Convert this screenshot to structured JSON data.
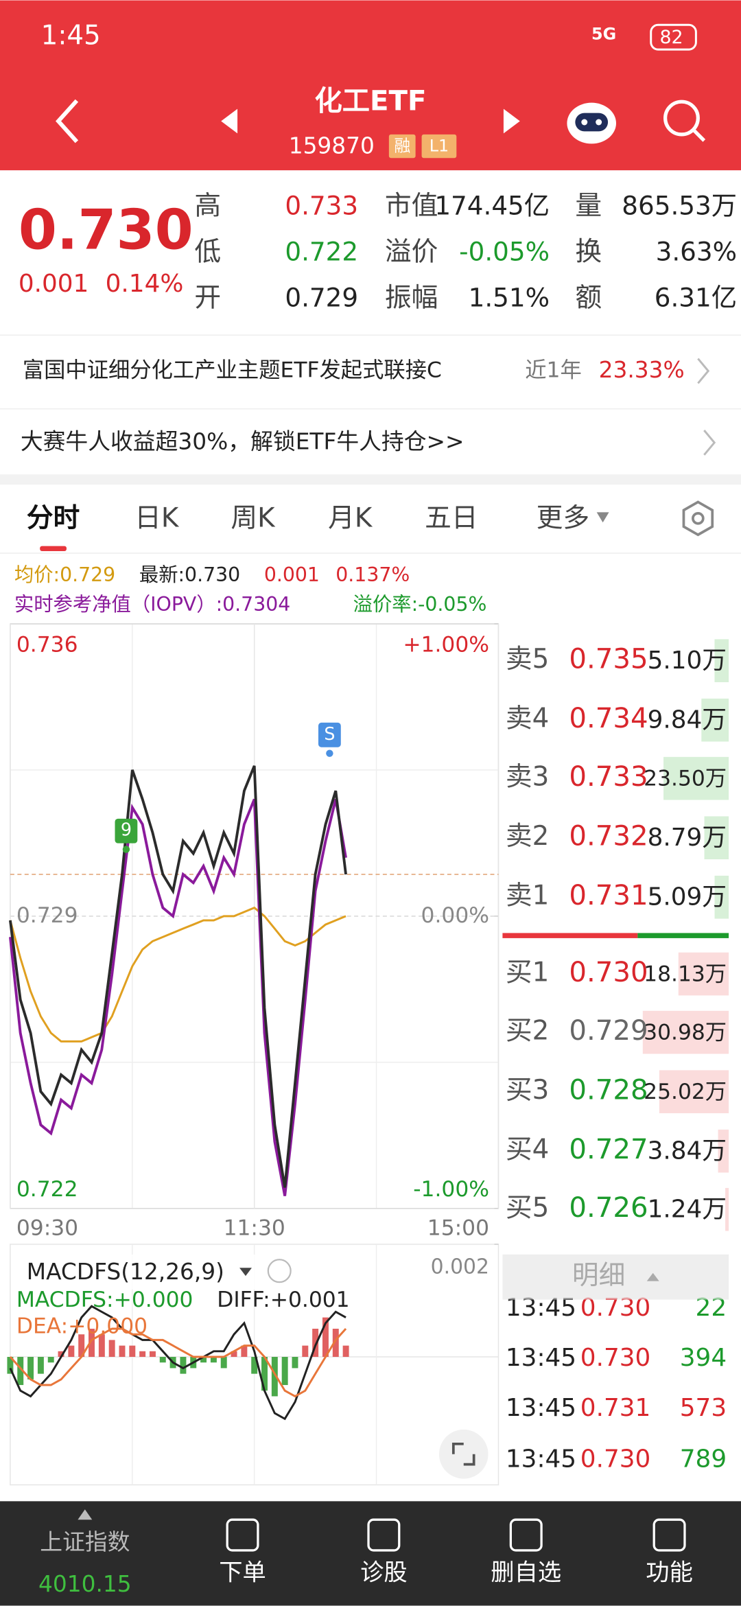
{
  "status_bar": {
    "time": "1:45",
    "network": "5G",
    "battery": "82"
  },
  "header": {
    "title": "化工ETF",
    "code": "159870",
    "badges": [
      "融",
      "L1"
    ]
  },
  "quote": {
    "price": "0.730",
    "change": "0.001",
    "change_pct": "0.14%",
    "color": "#d9262c",
    "stats": [
      {
        "label": "高",
        "value": "0.733",
        "color": "#d9262c"
      },
      {
        "label": "低",
        "value": "0.722",
        "color": "#1c9a2c"
      },
      {
        "label": "开",
        "value": "0.729",
        "color": "#222222"
      },
      {
        "label": "市值",
        "value": "174.45亿",
        "color": "#222222"
      },
      {
        "label": "溢价",
        "value": "-0.05%",
        "color": "#1c9a2c"
      },
      {
        "label": "振幅",
        "value": "1.51%",
        "color": "#222222"
      },
      {
        "label": "量",
        "value": "865.53万",
        "color": "#222222"
      },
      {
        "label": "换",
        "value": "3.63%",
        "color": "#222222"
      },
      {
        "label": "额",
        "value": "6.31亿",
        "color": "#222222"
      }
    ]
  },
  "links": {
    "fund": {
      "name": "富国中证细分化工产业主题ETF发起式联接C",
      "period": "近1年",
      "return": "23.33%"
    },
    "promo": "大赛牛人收益超30%，解锁ETF牛人持仓>>"
  },
  "tabs": {
    "items": [
      "分时",
      "日K",
      "周K",
      "月K",
      "五日",
      "更多"
    ],
    "active": 0
  },
  "info": {
    "avg": "均价:0.729",
    "latest": "最新:0.730",
    "change": "0.001",
    "change_pct": "0.137%",
    "iopv": "实时参考净值（IOPV）:0.7304",
    "premium": "溢价率:-0.05%"
  },
  "intraday_chart": {
    "type": "line",
    "xlim": [
      0,
      240
    ],
    "xticks": [
      {
        "value": 0,
        "label": "09:30"
      },
      {
        "value": 120,
        "label": "11:30"
      },
      {
        "value": 240,
        "label": "15:00"
      }
    ],
    "ylim": [
      0.722,
      0.736
    ],
    "yticks": [
      0.722,
      0.729,
      0.736
    ],
    "ytick_colors": [
      "#1c9a2c",
      "#888888",
      "#d9262c"
    ],
    "y2lim": [
      -1,
      1
    ],
    "y2ticks": [
      {
        "value": -1,
        "label": "-1.00%"
      },
      {
        "value": 0,
        "label": "0.00%"
      },
      {
        "value": 1,
        "label": "+1.00%"
      }
    ],
    "x": [
      0,
      5,
      10,
      15,
      20,
      25,
      30,
      35,
      40,
      45,
      50,
      55,
      60,
      65,
      70,
      75,
      80,
      85,
      90,
      95,
      100,
      105,
      110,
      115,
      120,
      125,
      130,
      135,
      140,
      145,
      150,
      155,
      160,
      165
    ],
    "series": [
      {
        "color": "#e0a020",
        "values": [
          0.7289,
          0.728,
          0.7272,
          0.7266,
          0.7262,
          0.726,
          0.726,
          0.726,
          0.7261,
          0.7262,
          0.7266,
          0.7272,
          0.7278,
          0.7282,
          0.7284,
          0.7285,
          0.7286,
          0.7287,
          0.7288,
          0.7289,
          0.7289,
          0.729,
          0.729,
          0.7291,
          0.7292,
          0.729,
          0.7287,
          0.7284,
          0.7283,
          0.7284,
          0.7286,
          0.7288,
          0.7289,
          0.729
        ]
      },
      {
        "color": "#8a1a9b",
        "values": [
          0.7285,
          0.7262,
          0.725,
          0.724,
          0.7238,
          0.7246,
          0.7244,
          0.7252,
          0.725,
          0.7258,
          0.7276,
          0.7296,
          0.7316,
          0.7312,
          0.73,
          0.7292,
          0.729,
          0.73,
          0.7298,
          0.7302,
          0.7296,
          0.7304,
          0.73,
          0.7312,
          0.7318,
          0.7262,
          0.7236,
          0.7223,
          0.7245,
          0.727,
          0.7296,
          0.7308,
          0.7318,
          0.7304
        ]
      },
      {
        "color": "#2b2b2b",
        "values": [
          0.7289,
          0.727,
          0.7262,
          0.7248,
          0.7245,
          0.7252,
          0.725,
          0.7258,
          0.7255,
          0.7262,
          0.7281,
          0.73,
          0.7325,
          0.7318,
          0.731,
          0.73,
          0.7296,
          0.7308,
          0.7305,
          0.731,
          0.7302,
          0.731,
          0.7305,
          0.732,
          0.7326,
          0.7268,
          0.724,
          0.7225,
          0.725,
          0.7275,
          0.73,
          0.7312,
          0.732,
          0.73
        ]
      }
    ],
    "markers": [
      {
        "label": "9",
        "x": 57,
        "value": 0.7305,
        "color": "#3aa53a"
      },
      {
        "label": "S",
        "x": 157,
        "value": 0.7328,
        "color": "#4a90e2"
      }
    ]
  },
  "macd": {
    "type": "bar",
    "title": "MACDFS(12,26,9)",
    "readouts": [
      {
        "text": "MACDFS:+0.000",
        "color": "#1c9a2c"
      },
      {
        "text": "DIFF:+0.001",
        "color": "#222222"
      },
      {
        "text": "DEA:+0.000",
        "color": "#e8763a"
      }
    ],
    "ylim": [
      -0.002,
      0.002
    ],
    "yticks": [
      0.002
    ],
    "up_color": "#e06060",
    "down_color": "#4aa84a",
    "x": [
      0,
      5,
      10,
      15,
      20,
      25,
      30,
      35,
      40,
      45,
      50,
      55,
      60,
      65,
      70,
      75,
      80,
      85,
      90,
      95,
      100,
      105,
      110,
      115,
      120,
      125,
      130,
      135,
      140,
      145,
      150,
      155,
      160,
      165
    ],
    "values": [
      -0.0003,
      -0.0005,
      -0.0004,
      -0.0003,
      -0.0001,
      0.0001,
      0.0002,
      0.0004,
      0.0005,
      0.0004,
      0.0003,
      0.0002,
      0.0002,
      0.0001,
      0.0001,
      -0.0001,
      -0.0002,
      -0.0003,
      -0.0002,
      -0.0001,
      -0.0001,
      -0.0002,
      0.0001,
      0.0002,
      -0.0003,
      -0.0006,
      -0.0007,
      -0.0005,
      -0.0002,
      0.0002,
      0.0005,
      0.0007,
      0.0005,
      0.0002
    ],
    "series": [
      {
        "color": "#222222",
        "values": [
          -0.0002,
          -0.0006,
          -0.0007,
          -0.0005,
          -0.0003,
          0,
          0.0003,
          0.0007,
          0.0009,
          0.0008,
          0.0007,
          0.0005,
          0.0004,
          0.0003,
          0.0003,
          0.0001,
          -0.0001,
          -0.0002,
          -0.0001,
          0,
          0.0001,
          0.0001,
          0.0004,
          0.0006,
          0.0001,
          -0.0006,
          -0.001,
          -0.0011,
          -0.0008,
          -0.0003,
          0.0002,
          0.0006,
          0.0008,
          0.0007
        ]
      },
      {
        "color": "#e8763a",
        "values": [
          0,
          -0.0002,
          -0.0004,
          -0.0005,
          -0.0005,
          -0.0004,
          -0.0002,
          0,
          0.0003,
          0.0004,
          0.0005,
          0.0005,
          0.0004,
          0.0004,
          0.0003,
          0.0003,
          0.0002,
          0.0001,
          0,
          0,
          0,
          0,
          0.0001,
          0.0002,
          0.0002,
          0,
          -0.0003,
          -0.0006,
          -0.0007,
          -0.0006,
          -0.0003,
          0,
          0.0003,
          0.0005
        ]
      }
    ]
  },
  "order_book": {
    "sell": [
      {
        "label": "卖5",
        "price": "0.735",
        "volume": 5.1,
        "volume_label": "5.10万",
        "color": "#d9262c"
      },
      {
        "label": "卖4",
        "price": "0.734",
        "volume": 9.84,
        "volume_label": "9.84万",
        "color": "#d9262c"
      },
      {
        "label": "卖3",
        "price": "0.733",
        "volume": 23.5,
        "volume_label": "23.50万",
        "color": "#d9262c"
      },
      {
        "label": "卖2",
        "price": "0.732",
        "volume": 8.79,
        "volume_label": "8.79万",
        "color": "#d9262c"
      },
      {
        "label": "卖1",
        "price": "0.731",
        "volume": 5.09,
        "volume_label": "5.09万",
        "color": "#d9262c"
      }
    ],
    "buy": [
      {
        "label": "买1",
        "price": "0.730",
        "volume": 18.13,
        "volume_label": "18.13万",
        "color": "#d9262c"
      },
      {
        "label": "买2",
        "price": "0.729",
        "volume": 30.98,
        "volume_label": "30.98万",
        "color": "#666666"
      },
      {
        "label": "买3",
        "price": "0.728",
        "volume": 25.02,
        "volume_label": "25.02万",
        "color": "#1c9a2c"
      },
      {
        "label": "买4",
        "price": "0.727",
        "volume": 3.84,
        "volume_label": "3.84万",
        "color": "#1c9a2c"
      },
      {
        "label": "买5",
        "price": "0.726",
        "volume": 1.24,
        "volume_label": "1.24万",
        "color": "#1c9a2c"
      }
    ]
  },
  "trades": {
    "title": "明细",
    "rows": [
      {
        "time": "13:45",
        "price": "0.730",
        "volume": "22",
        "price_color": "#d9262c",
        "volume_color": "#1c9a2c"
      },
      {
        "time": "13:45",
        "price": "0.730",
        "volume": "394",
        "price_color": "#d9262c",
        "volume_color": "#1c9a2c"
      },
      {
        "time": "13:45",
        "price": "0.731",
        "volume": "573",
        "price_color": "#d9262c",
        "volume_color": "#d9262c"
      },
      {
        "time": "13:45",
        "price": "0.730",
        "volume": "789",
        "price_color": "#d9262c",
        "volume_color": "#1c9a2c"
      }
    ]
  },
  "bottom_nav": {
    "index": {
      "name": "上证指数",
      "value": "4010.15"
    },
    "items": [
      "下单",
      "诊股",
      "删自选",
      "功能"
    ]
  }
}
